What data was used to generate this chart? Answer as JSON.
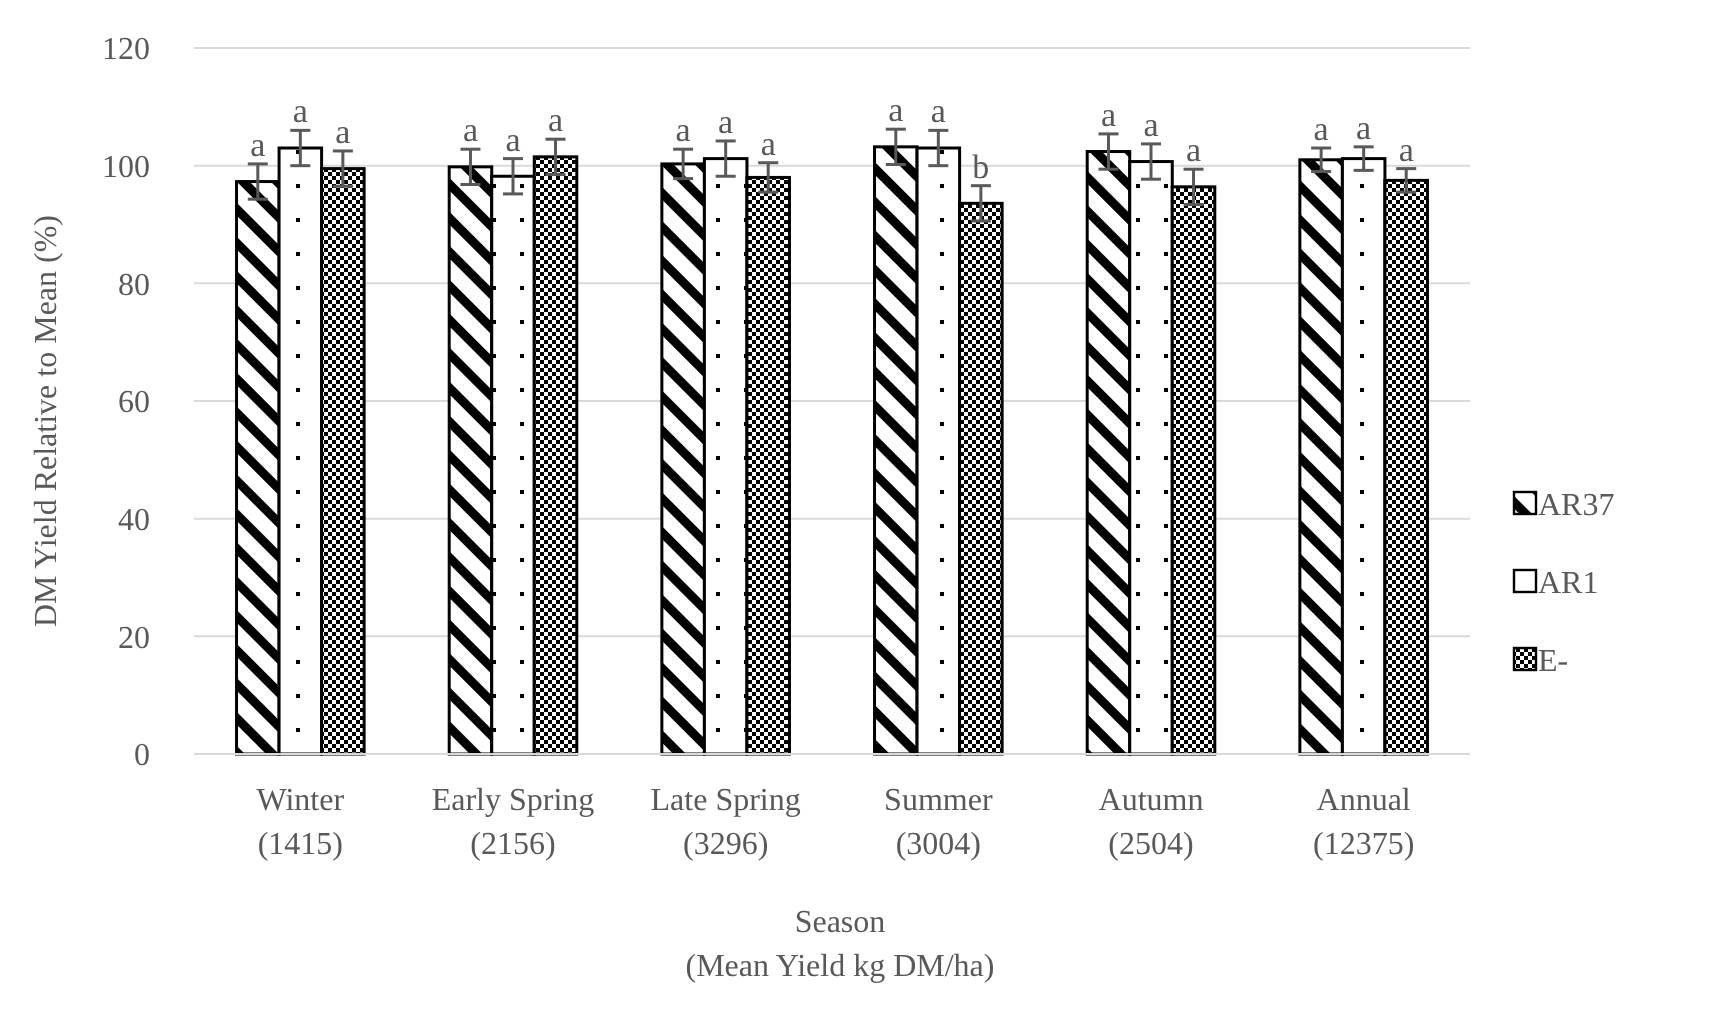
{
  "chart_data": {
    "type": "bar",
    "xlabel": "Season\n(Mean Yield kg DM/ha)",
    "ylabel": "DM Yield Relative to Mean (%)",
    "categories": [
      "Winter\n(1415)",
      "Early Spring\n(2156)",
      "Late Spring\n(3296)",
      "Summer\n(3004)",
      "Autumn\n(2504)",
      "Annual\n(12375)"
    ],
    "series": [
      {
        "name": "AR37",
        "color": "#000000",
        "values": [
          97.3,
          99.8,
          100.3,
          103.2,
          102.4,
          101
        ],
        "errors": [
          3,
          3,
          2.5,
          3,
          3,
          2
        ]
      },
      {
        "name": "AR1",
        "color": "#000000",
        "values": [
          103,
          98.2,
          101.2,
          103,
          100.7,
          101.2
        ],
        "errors": [
          3,
          3,
          3,
          3,
          3,
          2
        ]
      },
      {
        "name": "E-",
        "color": "#000000",
        "values": [
          99.5,
          101.5,
          98,
          93.6,
          96.4,
          97.5
        ],
        "errors": [
          3,
          3,
          2.5,
          3,
          3,
          2
        ]
      }
    ],
    "annotations": [
      "a",
      "a",
      "a",
      "a",
      "a",
      "a",
      "a",
      "a",
      "a",
      "a",
      "a",
      "b",
      "a",
      "a",
      "a",
      "a",
      "a",
      "a"
    ],
    "ylim": [
      0,
      120
    ],
    "yticks": [
      0,
      20,
      40,
      60,
      80,
      100,
      120
    ],
    "grid": "y",
    "legend": "right"
  }
}
